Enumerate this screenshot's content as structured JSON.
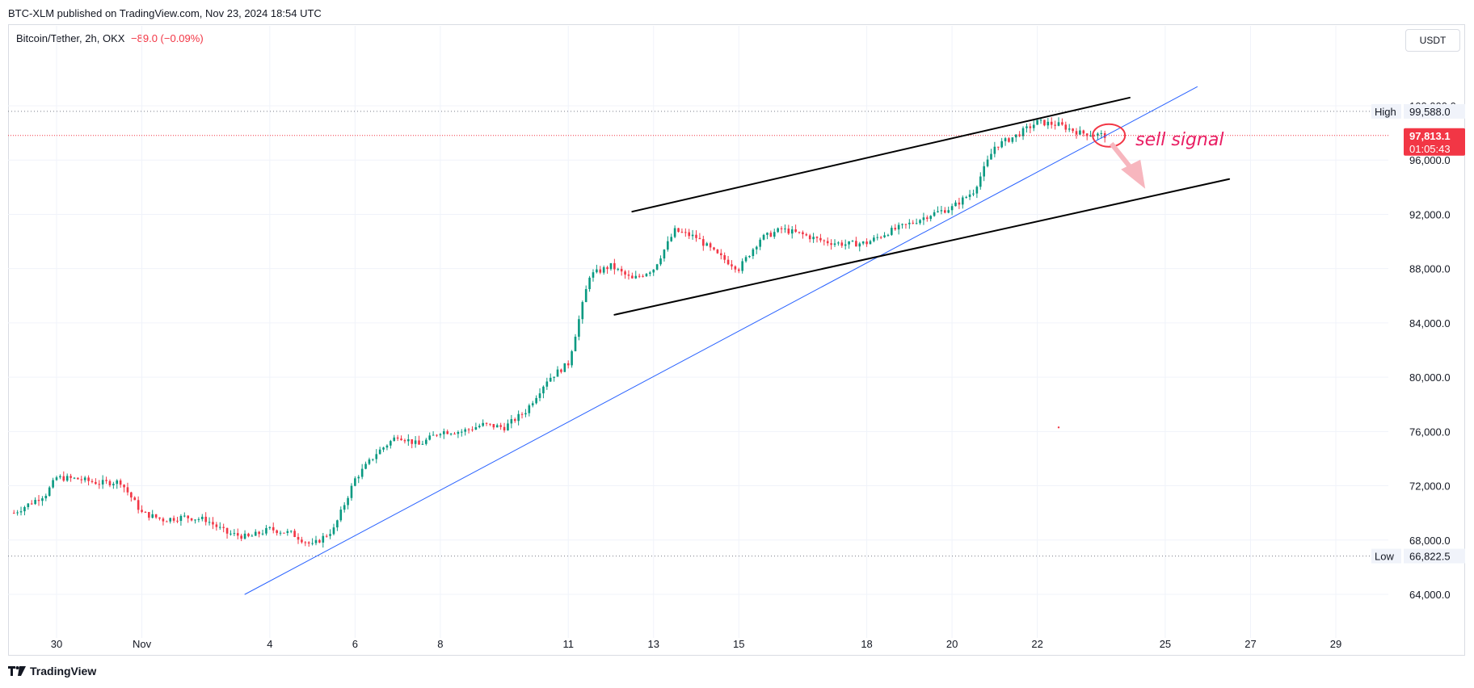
{
  "header": {
    "published": "BTC-XLM published on TradingView.com, Nov 23, 2024 18:54 UTC",
    "symbol": "Bitcoin/Tether, 2h, OKX",
    "change": "−89.0 (−0.09%)",
    "currency": "USDT"
  },
  "brand": {
    "name": "TradingView",
    "icon": "tradingview-logo-icon"
  },
  "colors": {
    "up": "#089981",
    "down": "#f23645",
    "trendline": "#2962ff",
    "channel": "#000000",
    "annotation": "#e91e63"
  },
  "chart_data": {
    "type": "candlestick",
    "xlabel": "",
    "ylabel": "",
    "ylim": [
      61000,
      103200
    ],
    "xlim": [
      "2024-10-29",
      "2024-11-30"
    ],
    "grid": true,
    "y_ticks": [
      "64,000.0",
      "68,000.0",
      "72,000.0",
      "76,000.0",
      "80,000.0",
      "84,000.0",
      "88,000.0",
      "92,000.0",
      "96,000.0",
      "100,000.0"
    ],
    "y_tick_values": [
      64000,
      68000,
      72000,
      76000,
      80000,
      84000,
      88000,
      92000,
      96000,
      100000
    ],
    "x_ticks": [
      {
        "label": "30",
        "date": "2024-10-30"
      },
      {
        "label": "Nov",
        "date": "2024-11-01"
      },
      {
        "label": "4",
        "date": "2024-11-04"
      },
      {
        "label": "6",
        "date": "2024-11-06"
      },
      {
        "label": "8",
        "date": "2024-11-08"
      },
      {
        "label": "11",
        "date": "2024-11-11"
      },
      {
        "label": "13",
        "date": "2024-11-13"
      },
      {
        "label": "15",
        "date": "2024-11-15"
      },
      {
        "label": "18",
        "date": "2024-11-18"
      },
      {
        "label": "20",
        "date": "2024-11-20"
      },
      {
        "label": "22",
        "date": "2024-11-22"
      },
      {
        "label": "25",
        "date": "2024-11-25"
      },
      {
        "label": "27",
        "date": "2024-11-27"
      },
      {
        "label": "29",
        "date": "2024-11-29"
      }
    ],
    "price_path": [
      {
        "date": "2024-10-29",
        "close": 70000
      },
      {
        "date": "2024-10-29T18:00",
        "close": 71400
      },
      {
        "date": "2024-10-30",
        "close": 72600
      },
      {
        "date": "2024-10-30T12:00",
        "close": 72500
      },
      {
        "date": "2024-10-31",
        "close": 72200
      },
      {
        "date": "2024-10-31T12:00",
        "close": 72300
      },
      {
        "date": "2024-11-01",
        "close": 70000
      },
      {
        "date": "2024-11-01T12:00",
        "close": 69500
      },
      {
        "date": "2024-11-02",
        "close": 69700
      },
      {
        "date": "2024-11-02T12:00",
        "close": 69500
      },
      {
        "date": "2024-11-03",
        "close": 68500
      },
      {
        "date": "2024-11-03T12:00",
        "close": 68200
      },
      {
        "date": "2024-11-04",
        "close": 68800
      },
      {
        "date": "2024-11-04T12:00",
        "close": 68500
      },
      {
        "date": "2024-11-05",
        "close": 67600
      },
      {
        "date": "2024-11-05T12:00",
        "close": 68800
      },
      {
        "date": "2024-11-06",
        "close": 72500
      },
      {
        "date": "2024-11-06T12:00",
        "close": 74400
      },
      {
        "date": "2024-11-07",
        "close": 75700
      },
      {
        "date": "2024-11-07T12:00",
        "close": 75000
      },
      {
        "date": "2024-11-08",
        "close": 76000
      },
      {
        "date": "2024-11-08T12:00",
        "close": 76000
      },
      {
        "date": "2024-11-09",
        "close": 76500
      },
      {
        "date": "2024-11-09T12:00",
        "close": 76300
      },
      {
        "date": "2024-11-10",
        "close": 77500
      },
      {
        "date": "2024-11-10T12:00",
        "close": 79800
      },
      {
        "date": "2024-11-11",
        "close": 81000
      },
      {
        "date": "2024-11-11T12:00",
        "close": 87500
      },
      {
        "date": "2024-11-12",
        "close": 88200
      },
      {
        "date": "2024-11-12T12:00",
        "close": 87200
      },
      {
        "date": "2024-11-13",
        "close": 88000
      },
      {
        "date": "2024-11-13T12:00",
        "close": 90800
      },
      {
        "date": "2024-11-14",
        "close": 90300
      },
      {
        "date": "2024-11-14T12:00",
        "close": 89000
      },
      {
        "date": "2024-11-15",
        "close": 88000
      },
      {
        "date": "2024-11-15T12:00",
        "close": 90200
      },
      {
        "date": "2024-11-16",
        "close": 90900
      },
      {
        "date": "2024-11-16T12:00",
        "close": 90500
      },
      {
        "date": "2024-11-17",
        "close": 90000
      },
      {
        "date": "2024-11-17T12:00",
        "close": 89800
      },
      {
        "date": "2024-11-18",
        "close": 89900
      },
      {
        "date": "2024-11-18T12:00",
        "close": 90700
      },
      {
        "date": "2024-11-19",
        "close": 91300
      },
      {
        "date": "2024-11-19T12:00",
        "close": 92000
      },
      {
        "date": "2024-11-20",
        "close": 92500
      },
      {
        "date": "2024-11-20T12:00",
        "close": 93700
      },
      {
        "date": "2024-11-21",
        "close": 97000
      },
      {
        "date": "2024-11-21T12:00",
        "close": 97800
      },
      {
        "date": "2024-11-22",
        "close": 98800
      },
      {
        "date": "2024-11-22T12:00",
        "close": 98600
      },
      {
        "date": "2024-11-23",
        "close": 98000
      },
      {
        "date": "2024-11-23T14:00",
        "close": 97813.1
      }
    ],
    "labels": {
      "high": {
        "tag": "High",
        "value": 99588.0,
        "text": "99,588.0"
      },
      "low": {
        "tag": "Low",
        "value": 66822.5,
        "text": "66,822.5"
      },
      "last": {
        "value": 97813.1,
        "text": "97,813.1",
        "countdown": "01:05:43"
      }
    },
    "drawings": {
      "trendline": {
        "from": {
          "date": "2024-11-03T10:00",
          "price": 64000
        },
        "to": {
          "date": "2024-11-25T18:00",
          "price": 101400
        }
      },
      "channel_upper": {
        "from": {
          "date": "2024-11-12T12:00",
          "price": 92200
        },
        "to": {
          "date": "2024-11-24T04:00",
          "price": 100600
        }
      },
      "channel_lower": {
        "from": {
          "date": "2024-11-12T02:00",
          "price": 84600
        },
        "to": {
          "date": "2024-11-26T12:00",
          "price": 94600
        }
      },
      "signal_text": "sell signal"
    }
  }
}
